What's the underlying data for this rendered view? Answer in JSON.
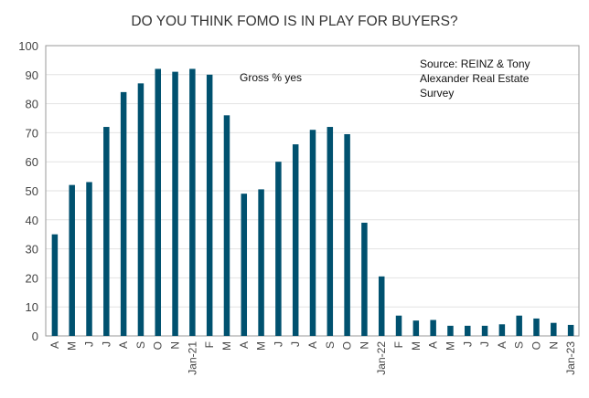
{
  "chart_data": {
    "type": "bar",
    "title": "DO YOU THINK FOMO IS IN PLAY FOR BUYERS?",
    "series_label": "Gross % yes",
    "source": [
      "Source: REINZ & Tony",
      "Alexander  Real Estate",
      "Survey"
    ],
    "xlabel": "",
    "ylabel": "",
    "ylim": [
      0,
      100
    ],
    "yticks": [
      0,
      10,
      20,
      30,
      40,
      50,
      60,
      70,
      80,
      90,
      100
    ],
    "grid": true,
    "bar_color": "#00516F",
    "categories": [
      "A",
      "M",
      "J",
      "J",
      "A",
      "S",
      "O",
      "N",
      "Jan-21",
      "F",
      "M",
      "A",
      "M",
      "J",
      "J",
      "A",
      "S",
      "O",
      "N",
      "Jan-22",
      "F",
      "M",
      "A",
      "M",
      "J",
      "J",
      "A",
      "S",
      "O",
      "N",
      "Jan-23"
    ],
    "values": [
      35,
      52,
      53,
      72,
      84,
      87,
      92,
      91,
      92,
      90,
      76,
      49,
      50.5,
      60,
      66,
      71,
      72,
      69.5,
      39,
      20.5,
      7,
      5.3,
      5.5,
      3.5,
      3.5,
      3.5,
      4,
      7,
      6,
      4.5,
      3.8
    ]
  }
}
